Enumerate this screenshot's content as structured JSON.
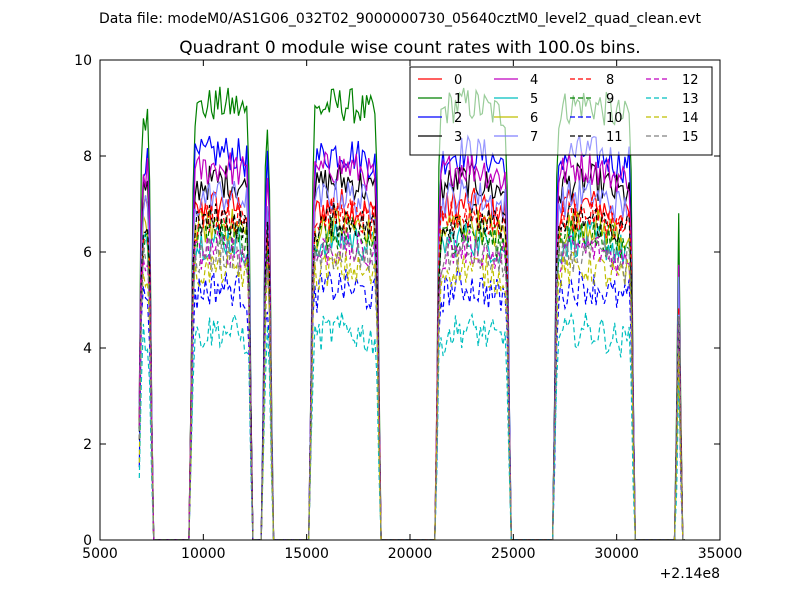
{
  "header": "Data file: modeM0/AS1G06_032T02_9000000730_05640cztM0_level2_quad_clean.evt",
  "chart_data": {
    "type": "line",
    "title": "Quadrant 0 module wise count rates with 100.0s bins.",
    "xlabel": "",
    "ylabel": "",
    "x_offset_label": "+2.14e8",
    "xlim": [
      5000,
      35000
    ],
    "ylim": [
      0,
      10
    ],
    "x_ticks": [
      5000,
      10000,
      15000,
      20000,
      25000,
      30000,
      35000
    ],
    "y_ticks": [
      0,
      2,
      4,
      6,
      8,
      10
    ],
    "grid": false,
    "legend_position": "top-right",
    "segments": [
      [
        6900,
        7500
      ],
      [
        9400,
        12300
      ],
      [
        12900,
        13300
      ],
      [
        15200,
        18500
      ],
      [
        21300,
        24800
      ],
      [
        27000,
        30800
      ],
      [
        32900,
        33100
      ]
    ],
    "series": [
      {
        "name": "0",
        "color": "#ff0000",
        "style": "solid",
        "level": 6.8
      },
      {
        "name": "1",
        "color": "#008000",
        "style": "solid",
        "level": 8.9
      },
      {
        "name": "2",
        "color": "#0000ff",
        "style": "solid",
        "level": 7.9
      },
      {
        "name": "3",
        "color": "#000000",
        "style": "solid",
        "level": 7.3
      },
      {
        "name": "4",
        "color": "#bf00bf",
        "style": "solid",
        "level": 7.6
      },
      {
        "name": "5",
        "color": "#00bfbf",
        "style": "solid",
        "level": 6.1
      },
      {
        "name": "6",
        "color": "#bfbf00",
        "style": "solid",
        "level": 6.4
      },
      {
        "name": "7",
        "color": "#8080ff",
        "style": "solid",
        "level": 7.0
      },
      {
        "name": "8",
        "color": "#ff0000",
        "style": "dashed",
        "level": 6.6
      },
      {
        "name": "9",
        "color": "#008000",
        "style": "dashed",
        "level": 6.2
      },
      {
        "name": "10",
        "color": "#0000ff",
        "style": "dashed",
        "level": 5.1
      },
      {
        "name": "11",
        "color": "#000000",
        "style": "dashed",
        "level": 6.5
      },
      {
        "name": "12",
        "color": "#bf00bf",
        "style": "dashed",
        "level": 5.9
      },
      {
        "name": "13",
        "color": "#00bfbf",
        "style": "dashed",
        "level": 4.2
      },
      {
        "name": "14",
        "color": "#bfbf00",
        "style": "dashed",
        "level": 5.5
      },
      {
        "name": "15",
        "color": "#808080",
        "style": "dashed",
        "level": 5.8
      }
    ]
  }
}
